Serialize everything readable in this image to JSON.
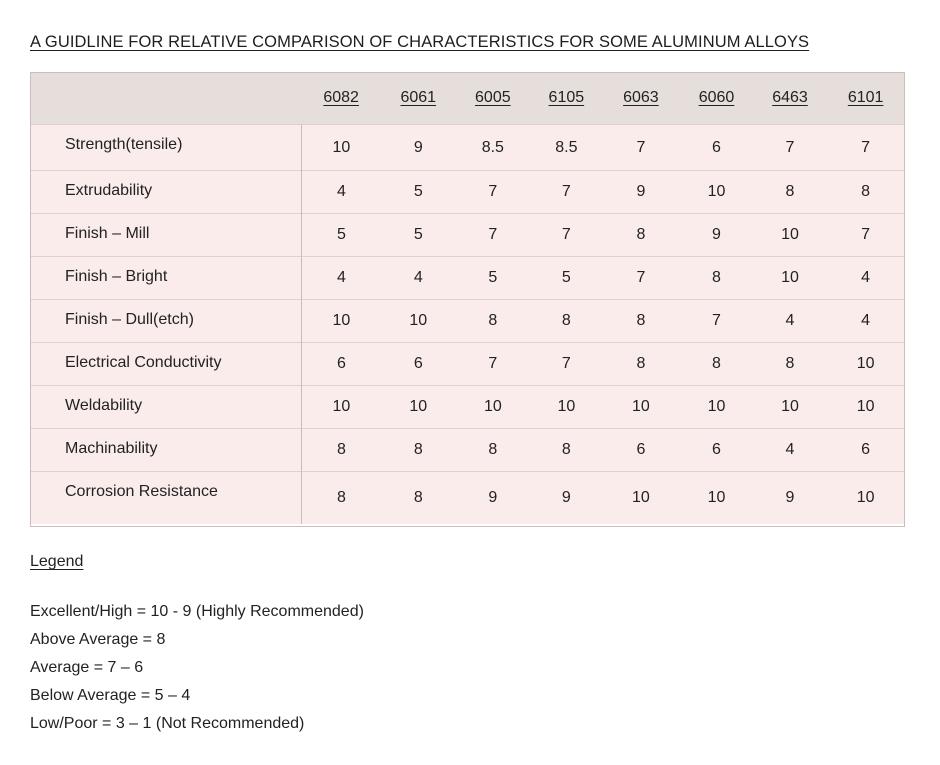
{
  "title": "A GUIDLINE FOR RELATIVE COMPARISON OF CHARACTERISTICS FOR SOME ALUMINUM ALLOYS",
  "table": {
    "columns": [
      "6082",
      "6061",
      "6005",
      "6105",
      "6063",
      "6060",
      "6463",
      "6101"
    ],
    "rows": [
      {
        "label": "Strength(tensile)",
        "values": [
          "10",
          "9",
          "8.5",
          "8.5",
          "7",
          "6",
          "7",
          "7"
        ]
      },
      {
        "label": "Extrudability",
        "values": [
          "4",
          "5",
          "7",
          "7",
          "9",
          "10",
          "8",
          "8"
        ]
      },
      {
        "label": "Finish – Mill",
        "values": [
          "5",
          "5",
          "7",
          "7",
          "8",
          "9",
          "10",
          "7"
        ]
      },
      {
        "label": "Finish – Bright",
        "values": [
          "4",
          "4",
          "5",
          "5",
          "7",
          "8",
          "10",
          "4"
        ]
      },
      {
        "label": "Finish – Dull(etch)",
        "values": [
          "10",
          "10",
          "8",
          "8",
          "8",
          "7",
          "4",
          "4"
        ]
      },
      {
        "label": "Electrical Conductivity",
        "values": [
          "6",
          "6",
          "7",
          "7",
          "8",
          "8",
          "8",
          "10"
        ]
      },
      {
        "label": "Weldability",
        "values": [
          "10",
          "10",
          "10",
          "10",
          "10",
          "10",
          "10",
          "10"
        ]
      },
      {
        "label": "Machinability",
        "values": [
          "8",
          "8",
          "8",
          "8",
          "6",
          "6",
          "4",
          "6"
        ]
      },
      {
        "label": "Corrosion Resistance",
        "values": [
          "8",
          "8",
          "9",
          "9",
          "10",
          "10",
          "9",
          "10"
        ]
      }
    ]
  },
  "legend": {
    "title": "Legend",
    "items": [
      "Excellent/High = 10 - 9 (Highly Recommended)",
      "Above Average = 8",
      "Average = 7 – 6",
      "Below Average = 5 – 4",
      "Low/Poor = 3 – 1 (Not Recommended)"
    ]
  },
  "colors": {
    "header_bg": "#e6dedb",
    "row_bg": "#fbecec",
    "border": "#cdbcbc"
  }
}
